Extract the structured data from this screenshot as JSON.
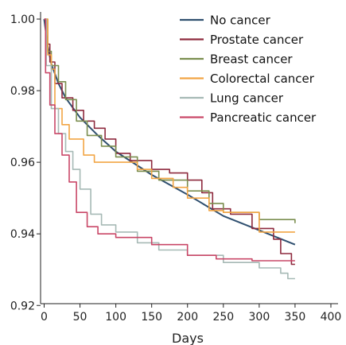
{
  "chart_data": {
    "type": "line",
    "title": "",
    "xlabel": "Days",
    "ylabel": "",
    "xlim": [
      -5,
      410
    ],
    "ylim": [
      0.9205,
      1.002
    ],
    "xticks": [
      0,
      50,
      100,
      150,
      200,
      250,
      300,
      350,
      400
    ],
    "yticks": [
      0.92,
      0.94,
      0.96,
      0.98,
      1.0
    ],
    "ytick_labels": [
      "0.92",
      "0.94",
      "0.96",
      "0.98",
      "1.00"
    ],
    "grid": false,
    "legend_position": "top-right",
    "series": [
      {
        "name": "No cancer",
        "color": "#2f4f6f",
        "step": false,
        "points": [
          [
            0,
            1.0
          ],
          [
            5,
            0.9925
          ],
          [
            10,
            0.9875
          ],
          [
            20,
            0.982
          ],
          [
            30,
            0.978
          ],
          [
            50,
            0.9725
          ],
          [
            75,
            0.9675
          ],
          [
            100,
            0.963
          ],
          [
            150,
            0.9565
          ],
          [
            200,
            0.951
          ],
          [
            250,
            0.945
          ],
          [
            300,
            0.941
          ],
          [
            350,
            0.937
          ]
        ]
      },
      {
        "name": "Prostate cancer",
        "color": "#8e2a3e",
        "step": true,
        "points": [
          [
            0,
            1.0
          ],
          [
            3,
            0.993
          ],
          [
            8,
            0.988
          ],
          [
            15,
            0.982
          ],
          [
            25,
            0.978
          ],
          [
            40,
            0.9745
          ],
          [
            55,
            0.9715
          ],
          [
            70,
            0.9695
          ],
          [
            85,
            0.9665
          ],
          [
            100,
            0.9625
          ],
          [
            120,
            0.9605
          ],
          [
            150,
            0.958
          ],
          [
            175,
            0.957
          ],
          [
            200,
            0.955
          ],
          [
            220,
            0.9515
          ],
          [
            235,
            0.947
          ],
          [
            260,
            0.9455
          ],
          [
            290,
            0.9415
          ],
          [
            320,
            0.9385
          ],
          [
            330,
            0.9345
          ],
          [
            345,
            0.9315
          ],
          [
            350,
            0.9315
          ]
        ]
      },
      {
        "name": "Breast cancer",
        "color": "#7b8e4f",
        "step": true,
        "points": [
          [
            0,
            1.0
          ],
          [
            5,
            0.991
          ],
          [
            10,
            0.987
          ],
          [
            20,
            0.9825
          ],
          [
            30,
            0.9775
          ],
          [
            45,
            0.9715
          ],
          [
            60,
            0.9675
          ],
          [
            80,
            0.9645
          ],
          [
            100,
            0.9615
          ],
          [
            130,
            0.9575
          ],
          [
            160,
            0.955
          ],
          [
            200,
            0.952
          ],
          [
            230,
            0.9485
          ],
          [
            250,
            0.946
          ],
          [
            300,
            0.944
          ],
          [
            350,
            0.943
          ]
        ]
      },
      {
        "name": "Colorectal cancer",
        "color": "#f2a544",
        "step": true,
        "points": [
          [
            0,
            1.0
          ],
          [
            5,
            0.99
          ],
          [
            10,
            0.986
          ],
          [
            15,
            0.975
          ],
          [
            25,
            0.9705
          ],
          [
            35,
            0.9665
          ],
          [
            55,
            0.962
          ],
          [
            70,
            0.96
          ],
          [
            100,
            0.96
          ],
          [
            130,
            0.958
          ],
          [
            150,
            0.9555
          ],
          [
            180,
            0.953
          ],
          [
            200,
            0.95
          ],
          [
            230,
            0.9465
          ],
          [
            250,
            0.946
          ],
          [
            300,
            0.9405
          ],
          [
            350,
            0.9405
          ]
        ]
      },
      {
        "name": "Lung cancer",
        "color": "#a6b9b5",
        "step": true,
        "points": [
          [
            0,
            1.0
          ],
          [
            3,
            0.987
          ],
          [
            10,
            0.975
          ],
          [
            20,
            0.968
          ],
          [
            30,
            0.963
          ],
          [
            40,
            0.958
          ],
          [
            50,
            0.9525
          ],
          [
            65,
            0.9455
          ],
          [
            80,
            0.9425
          ],
          [
            100,
            0.9405
          ],
          [
            130,
            0.9375
          ],
          [
            160,
            0.9355
          ],
          [
            200,
            0.934
          ],
          [
            250,
            0.932
          ],
          [
            300,
            0.9305
          ],
          [
            330,
            0.929
          ],
          [
            340,
            0.9275
          ],
          [
            350,
            0.9275
          ]
        ]
      },
      {
        "name": "Pancreatic cancer",
        "color": "#c94868",
        "step": true,
        "points": [
          [
            0,
            1.0
          ],
          [
            2,
            0.985
          ],
          [
            8,
            0.976
          ],
          [
            15,
            0.968
          ],
          [
            25,
            0.962
          ],
          [
            35,
            0.9545
          ],
          [
            45,
            0.946
          ],
          [
            60,
            0.942
          ],
          [
            75,
            0.94
          ],
          [
            100,
            0.939
          ],
          [
            125,
            0.939
          ],
          [
            150,
            0.937
          ],
          [
            200,
            0.934
          ],
          [
            240,
            0.933
          ],
          [
            290,
            0.9325
          ],
          [
            350,
            0.9325
          ]
        ]
      }
    ]
  }
}
